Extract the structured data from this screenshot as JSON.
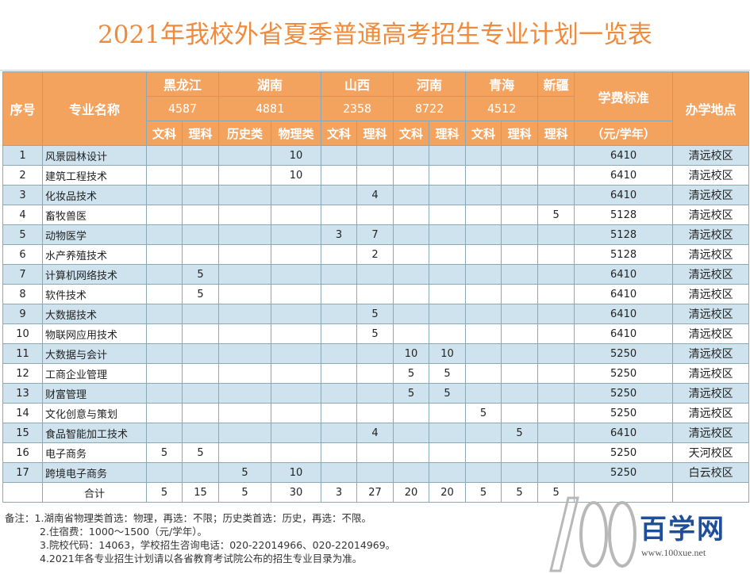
{
  "title": "2021年我校外省夏季普通高考招生专业计划一览表",
  "header": {
    "seq": "序号",
    "major": "专业名称",
    "fee": "学费标准",
    "fee_unit": "（元/学年）",
    "location": "办学地点",
    "provinces": [
      {
        "name": "黑龙江",
        "total": "4587",
        "subjects": [
          "文科",
          "理科"
        ]
      },
      {
        "name": "湖南",
        "total": "4881",
        "subjects": [
          "历史类",
          "物理类"
        ]
      },
      {
        "name": "山西",
        "total": "2358",
        "subjects": [
          "文科",
          "理科"
        ]
      },
      {
        "name": "河南",
        "total": "8722",
        "subjects": [
          "文科",
          "理科"
        ]
      },
      {
        "name": "青海",
        "total": "4512",
        "subjects": [
          "文科",
          "理科"
        ]
      },
      {
        "name": "新疆",
        "total": "",
        "subjects": [
          "理科"
        ]
      }
    ]
  },
  "rows": [
    {
      "seq": "1",
      "name": "风景园林设计",
      "v": [
        "",
        "",
        "",
        "10",
        "",
        "",
        "",
        "",
        "",
        "",
        ""
      ],
      "fee": "6410",
      "loc": "清远校区"
    },
    {
      "seq": "2",
      "name": "建筑工程技术",
      "v": [
        "",
        "",
        "",
        "10",
        "",
        "",
        "",
        "",
        "",
        "",
        ""
      ],
      "fee": "6410",
      "loc": "清远校区"
    },
    {
      "seq": "3",
      "name": "化妆品技术",
      "v": [
        "",
        "",
        "",
        "",
        "",
        "4",
        "",
        "",
        "",
        "",
        ""
      ],
      "fee": "6410",
      "loc": "清远校区"
    },
    {
      "seq": "4",
      "name": "畜牧兽医",
      "v": [
        "",
        "",
        "",
        "",
        "",
        "",
        "",
        "",
        "",
        "",
        "5"
      ],
      "fee": "5128",
      "loc": "清远校区"
    },
    {
      "seq": "5",
      "name": "动物医学",
      "v": [
        "",
        "",
        "",
        "",
        "3",
        "7",
        "",
        "",
        "",
        "",
        ""
      ],
      "fee": "5128",
      "loc": "清远校区"
    },
    {
      "seq": "6",
      "name": "水产养殖技术",
      "v": [
        "",
        "",
        "",
        "",
        "",
        "2",
        "",
        "",
        "",
        "",
        ""
      ],
      "fee": "5128",
      "loc": "清远校区"
    },
    {
      "seq": "7",
      "name": "计算机网络技术",
      "v": [
        "",
        "5",
        "",
        "",
        "",
        "",
        "",
        "",
        "",
        "",
        ""
      ],
      "fee": "6410",
      "loc": "清远校区"
    },
    {
      "seq": "8",
      "name": "软件技术",
      "v": [
        "",
        "5",
        "",
        "",
        "",
        "",
        "",
        "",
        "",
        "",
        ""
      ],
      "fee": "6410",
      "loc": "清远校区"
    },
    {
      "seq": "9",
      "name": "大数据技术",
      "v": [
        "",
        "",
        "",
        "",
        "",
        "5",
        "",
        "",
        "",
        "",
        ""
      ],
      "fee": "6410",
      "loc": "清远校区"
    },
    {
      "seq": "10",
      "name": "物联网应用技术",
      "v": [
        "",
        "",
        "",
        "",
        "",
        "5",
        "",
        "",
        "",
        "",
        ""
      ],
      "fee": "6410",
      "loc": "清远校区"
    },
    {
      "seq": "11",
      "name": "大数据与会计",
      "v": [
        "",
        "",
        "",
        "",
        "",
        "",
        "10",
        "10",
        "",
        "",
        ""
      ],
      "fee": "5250",
      "loc": "清远校区"
    },
    {
      "seq": "12",
      "name": "工商企业管理",
      "v": [
        "",
        "",
        "",
        "",
        "",
        "",
        "5",
        "5",
        "",
        "",
        ""
      ],
      "fee": "5250",
      "loc": "清远校区"
    },
    {
      "seq": "13",
      "name": "财富管理",
      "v": [
        "",
        "",
        "",
        "",
        "",
        "",
        "5",
        "5",
        "",
        "",
        ""
      ],
      "fee": "5250",
      "loc": "清远校区"
    },
    {
      "seq": "14",
      "name": "文化创意与策划",
      "v": [
        "",
        "",
        "",
        "",
        "",
        "",
        "",
        "",
        "5",
        "",
        ""
      ],
      "fee": "5250",
      "loc": "清远校区"
    },
    {
      "seq": "15",
      "name": "食品智能加工技术",
      "v": [
        "",
        "",
        "",
        "",
        "",
        "4",
        "",
        "",
        "",
        "5",
        ""
      ],
      "fee": "6410",
      "loc": "清远校区"
    },
    {
      "seq": "16",
      "name": "电子商务",
      "v": [
        "5",
        "5",
        "",
        "",
        "",
        "",
        "",
        "",
        "",
        "",
        ""
      ],
      "fee": "5250",
      "loc": "天河校区"
    },
    {
      "seq": "17",
      "name": "跨境电子商务",
      "v": [
        "",
        "",
        "5",
        "10",
        "",
        "",
        "",
        "",
        "",
        "",
        ""
      ],
      "fee": "5250",
      "loc": "白云校区"
    }
  ],
  "total": {
    "label": "合计",
    "v": [
      "5",
      "15",
      "5",
      "30",
      "3",
      "27",
      "20",
      "20",
      "5",
      "5",
      "5"
    ]
  },
  "notes": {
    "prefix": "备注：",
    "items": [
      "1.湖南省物理类首选：物理，再选：不限；历史类首选：历史，再选：不限。",
      "2.住宿费：1000～1500（元/学年）。",
      "3.院校代码：14063，学校招生咨询电话：020-22014966、020-22014969。",
      "4.2021年各专业招生计划请以各省教育考试院公布的招生专业目录为准。"
    ]
  },
  "watermark": {
    "brand": "百学网",
    "url": "www.100xue.net"
  }
}
